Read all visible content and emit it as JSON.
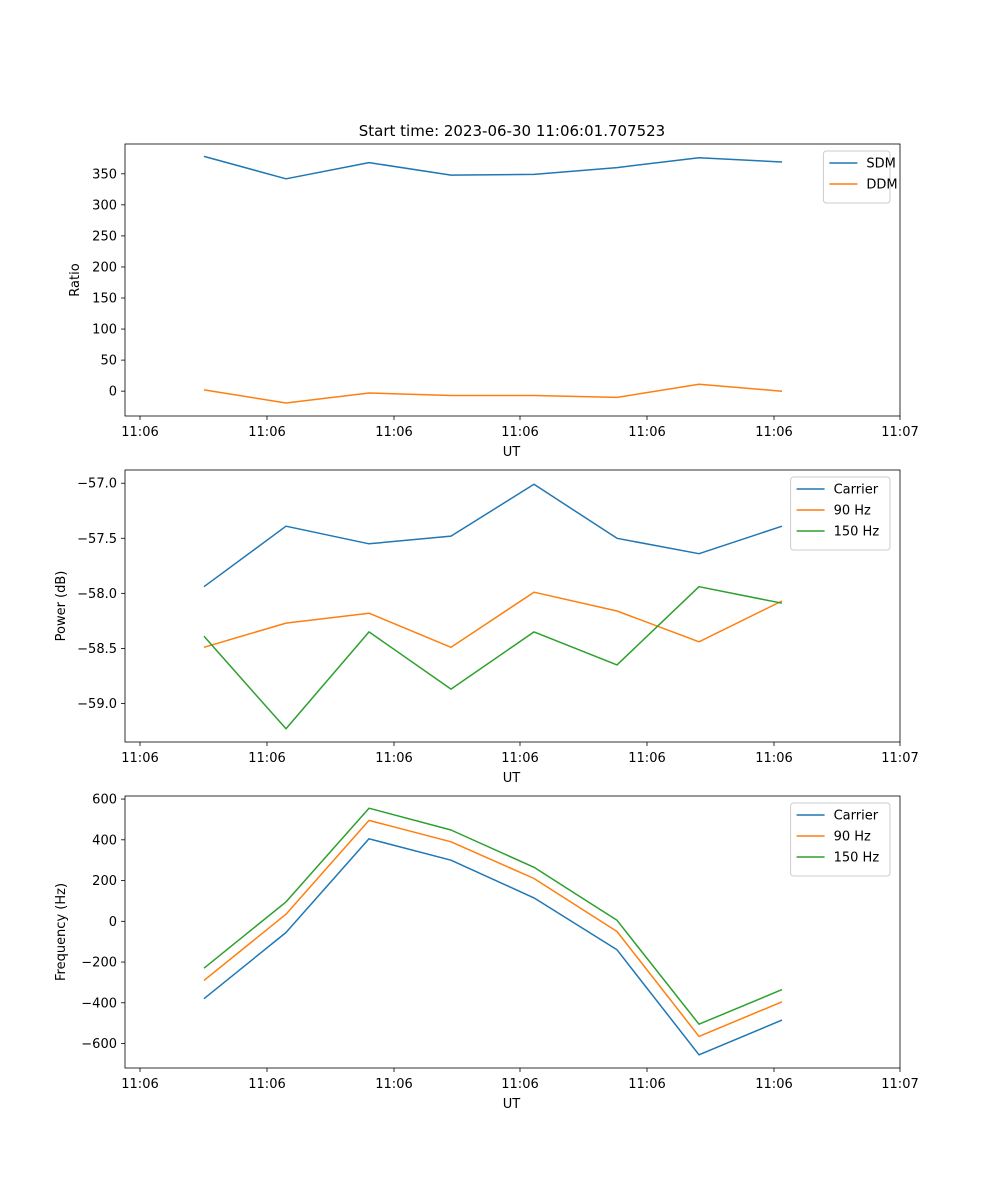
{
  "figure_title": "Start time: 2023-06-30 11:06:01.707523",
  "chart_data": [
    {
      "type": "line",
      "title": "Start time: 2023-06-30 11:06:01.707523",
      "xlabel": "UT",
      "ylabel": "Ratio",
      "x_tick_labels": [
        "11:06",
        "11:06",
        "11:06",
        "11:06",
        "11:06",
        "11:06",
        "11:07"
      ],
      "ylim": [
        -40,
        398
      ],
      "y_ticks": [
        0,
        50,
        100,
        150,
        200,
        250,
        300,
        350
      ],
      "y_tick_labels": [
        "0",
        "50",
        "100",
        "150",
        "200",
        "250",
        "300",
        "350"
      ],
      "legend_position": "top-right",
      "grid": false,
      "series": [
        {
          "name": "SDM",
          "color": "#1f77b4",
          "values": [
            378,
            342,
            368,
            348,
            349,
            360,
            376,
            369
          ]
        },
        {
          "name": "DDM",
          "color": "#ff7f0e",
          "values": [
            2,
            -19,
            -3,
            -7,
            -7,
            -10,
            11,
            0
          ]
        }
      ]
    },
    {
      "type": "line",
      "xlabel": "UT",
      "ylabel": "Power (dB)",
      "x_tick_labels": [
        "11:06",
        "11:06",
        "11:06",
        "11:06",
        "11:06",
        "11:06",
        "11:07"
      ],
      "ylim": [
        -59.35,
        -56.88
      ],
      "y_ticks": [
        -59.0,
        -58.5,
        -58.0,
        -57.5,
        -57.0
      ],
      "y_tick_labels": [
        "−59.0",
        "−58.5",
        "−58.0",
        "−57.5",
        "−57.0"
      ],
      "legend_position": "top-right",
      "grid": false,
      "series": [
        {
          "name": "Carrier",
          "color": "#1f77b4",
          "values": [
            -57.94,
            -57.39,
            -57.55,
            -57.48,
            -57.01,
            -57.5,
            -57.64,
            -57.39
          ]
        },
        {
          "name": "90 Hz",
          "color": "#ff7f0e",
          "values": [
            -58.49,
            -58.27,
            -58.18,
            -58.49,
            -57.99,
            -58.16,
            -58.44,
            -58.07
          ]
        },
        {
          "name": "150 Hz",
          "color": "#2ca02c",
          "values": [
            -58.39,
            -59.23,
            -58.35,
            -58.87,
            -58.35,
            -58.65,
            -57.94,
            -58.09
          ]
        }
      ]
    },
    {
      "type": "line",
      "xlabel": "UT",
      "ylabel": "Frequency (Hz)",
      "x_tick_labels": [
        "11:06",
        "11:06",
        "11:06",
        "11:06",
        "11:06",
        "11:06",
        "11:07"
      ],
      "ylim": [
        -720,
        615
      ],
      "y_ticks": [
        -600,
        -400,
        -200,
        0,
        200,
        400,
        600
      ],
      "y_tick_labels": [
        "−600",
        "−400",
        "−200",
        "0",
        "200",
        "400",
        "600"
      ],
      "legend_position": "top-right",
      "grid": false,
      "series": [
        {
          "name": "Carrier",
          "color": "#1f77b4",
          "values": [
            -380,
            -55,
            405,
            300,
            115,
            -140,
            -655,
            -485
          ]
        },
        {
          "name": "90 Hz",
          "color": "#ff7f0e",
          "values": [
            -290,
            35,
            495,
            390,
            210,
            -50,
            -565,
            -395
          ]
        },
        {
          "name": "150 Hz",
          "color": "#2ca02c",
          "values": [
            -230,
            95,
            555,
            448,
            265,
            5,
            -505,
            -335
          ]
        }
      ]
    }
  ]
}
